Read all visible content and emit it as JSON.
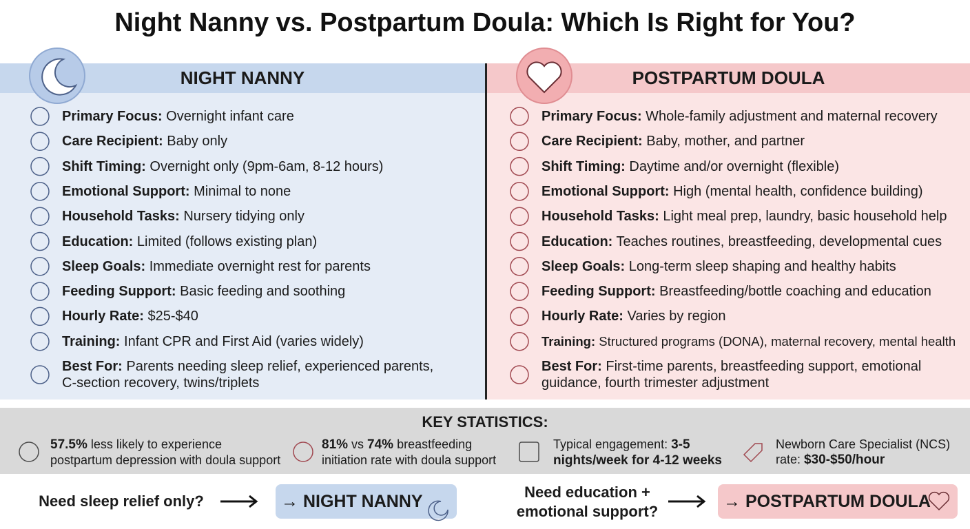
{
  "title": "Night Nanny vs. Postpartum Doula: Which Is Right for You?",
  "night_nanny": {
    "heading": "NIGHT NANNY",
    "rows": [
      {
        "label": "Primary Focus:",
        "text": "Overnight infant care"
      },
      {
        "label": "Care Recipient:",
        "text": "Baby only"
      },
      {
        "label": "Shift Timing:",
        "text": "Overnight only (9pm-6am, 8-12 hours)"
      },
      {
        "label": "Emotional Support:",
        "text": "Minimal to none"
      },
      {
        "label": "Household Tasks:",
        "text": "Nursery tidying only"
      },
      {
        "label": "Education:",
        "text": "Limited (follows existing plan)"
      },
      {
        "label": "Sleep Goals:",
        "text": "Immediate overnight rest for parents"
      },
      {
        "label": "Feeding Support:",
        "text": "Basic feeding and soothing"
      },
      {
        "label": "Hourly Rate:",
        "text": "$25-$40"
      },
      {
        "label": "Training:",
        "text": "Infant CPR and First Aid (varies widely)"
      },
      {
        "label": "Best For:",
        "text": "Parents needing sleep relief, experienced parents, C-section recovery, twins/triplets"
      }
    ]
  },
  "postpartum_doula": {
    "heading": "POSTPARTUM DOULA",
    "rows": [
      {
        "label": "Primary Focus:",
        "text": "Whole-family adjustment and maternal recovery"
      },
      {
        "label": "Care Recipient:",
        "text": "Baby, mother, and partner"
      },
      {
        "label": "Shift Timing:",
        "text": "Daytime and/or overnight (flexible)"
      },
      {
        "label": "Emotional Support:",
        "text": "High (mental health, confidence building)"
      },
      {
        "label": "Household Tasks:",
        "text": "Light meal prep, laundry, basic household help"
      },
      {
        "label": "Education:",
        "text": "Teaches routines, breastfeeding, developmental cues"
      },
      {
        "label": "Sleep Goals:",
        "text": "Long-term sleep shaping and healthy habits"
      },
      {
        "label": "Feeding Support:",
        "text": "Breastfeeding/bottle coaching and education"
      },
      {
        "label": "Hourly Rate:",
        "text": "Varies by region"
      },
      {
        "label": "Training:",
        "text": "Structured programs (DONA), maternal recovery, mental health"
      },
      {
        "label": "Best For:",
        "text": "First-time parents, breastfeeding support, emotional guidance, fourth trimester adjustment"
      }
    ]
  },
  "key_statistics": {
    "heading": "KEY STATISTICS:",
    "items": [
      {
        "segments": [
          "57.5%",
          " less likely to experience postpartum depression with doula support"
        ]
      },
      {
        "segments": [
          "81%",
          " vs ",
          "74%",
          " breastfeeding initiation rate with doula support"
        ]
      },
      {
        "segments": [
          "Typical engagement: ",
          "3-5 nights/week for 4-12 weeks"
        ]
      },
      {
        "segments": [
          "Newborn Care Specialist (NCS) rate: ",
          "$30-$50/hour"
        ]
      }
    ]
  },
  "decision": [
    {
      "question": "Need sleep relief only?",
      "answer": "→ NIGHT NANNY"
    },
    {
      "question": "Need education + emotional support?",
      "answer": "→ POSTPARTUM DOULA"
    }
  ]
}
